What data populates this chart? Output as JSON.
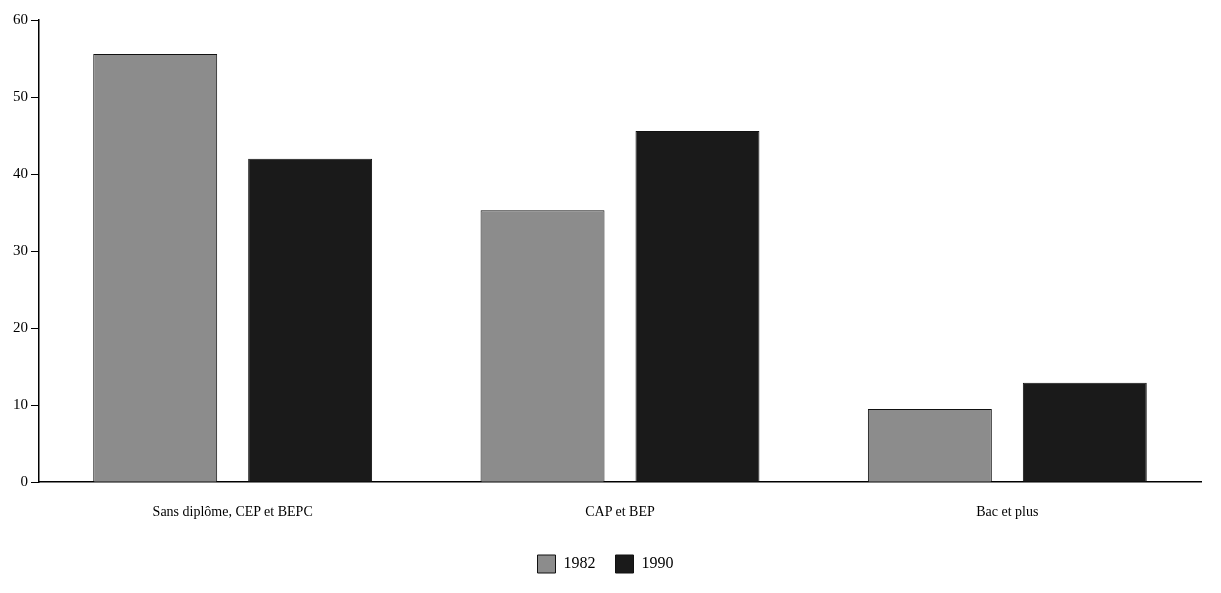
{
  "chart_data": {
    "type": "bar",
    "categories": [
      "Sans diplôme, CEP et BEPC",
      "CAP et BEP",
      "Bac et plus"
    ],
    "series": [
      {
        "name": "1982",
        "color": "#8c8c8c",
        "values": [
          55.6,
          35.3,
          9.5
        ]
      },
      {
        "name": "1990",
        "color": "#1a1a1a",
        "values": [
          42.0,
          45.6,
          12.9
        ]
      }
    ],
    "ylim": [
      0,
      60
    ],
    "yticks": [
      0,
      10,
      20,
      30,
      40,
      50,
      60
    ],
    "grid": false,
    "legend": "bottom"
  }
}
